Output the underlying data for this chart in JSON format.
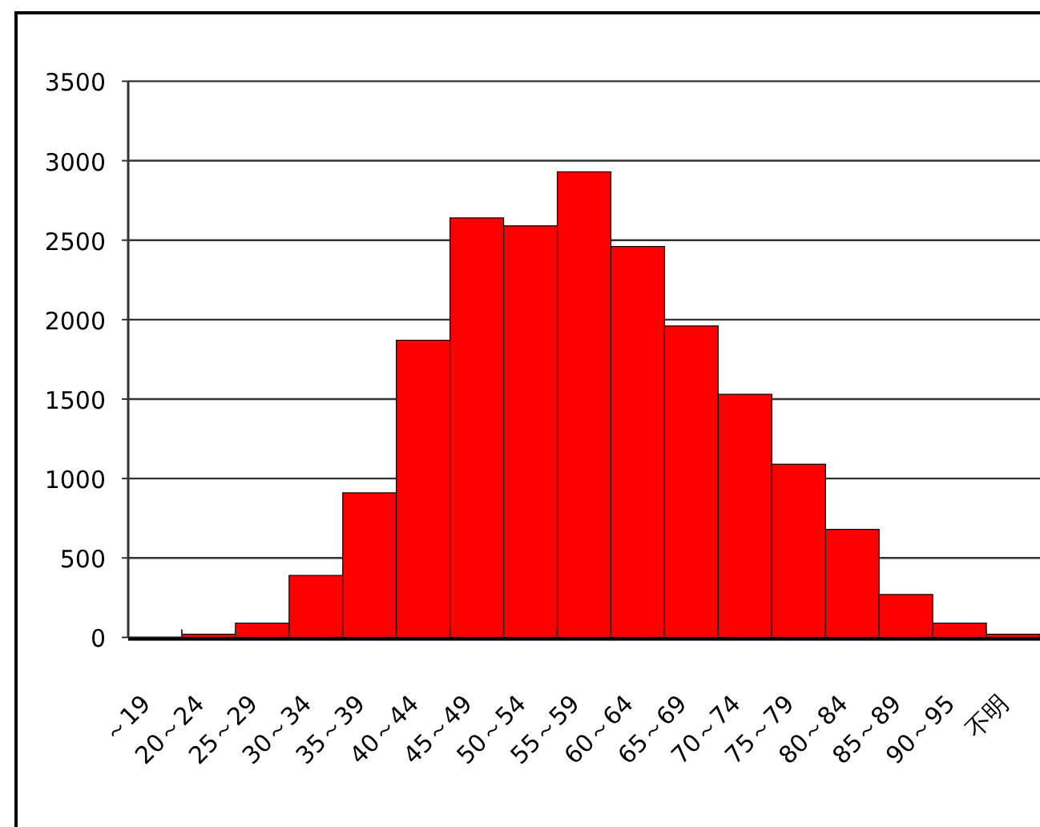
{
  "chart_data": {
    "type": "bar",
    "categories": [
      "～19",
      "20～24",
      "25～29",
      "30～34",
      "35～39",
      "40～44",
      "45～49",
      "50～54",
      "55～59",
      "60～64",
      "65～69",
      "70～74",
      "75～79",
      "80～84",
      "85～89",
      "90～95",
      "不明"
    ],
    "values": [
      0,
      20,
      90,
      390,
      910,
      1870,
      2640,
      2590,
      2930,
      2460,
      1960,
      1530,
      1090,
      680,
      270,
      90,
      20
    ],
    "color": "#ff0000",
    "ylim": [
      0,
      3500
    ],
    "yticks": [
      0,
      500,
      1000,
      1500,
      2000,
      2500,
      3000,
      3500
    ],
    "grid": "y"
  }
}
